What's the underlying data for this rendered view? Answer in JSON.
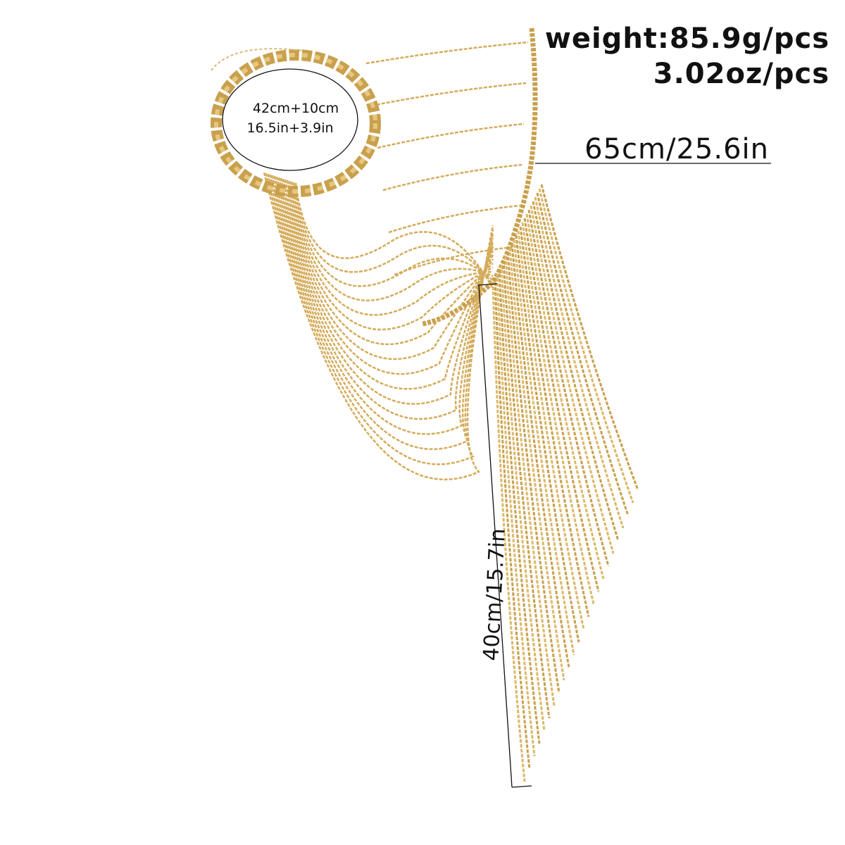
{
  "weight": {
    "grams": "weight:85.9g/pcs",
    "ounces": "3.02oz/pcs"
  },
  "body_length": "65cm/25.6in",
  "neck_size": {
    "cm": "42cm+10cm",
    "in": "16.5in+3.9in"
  },
  "tassel_length": "40cm/15.7in"
}
